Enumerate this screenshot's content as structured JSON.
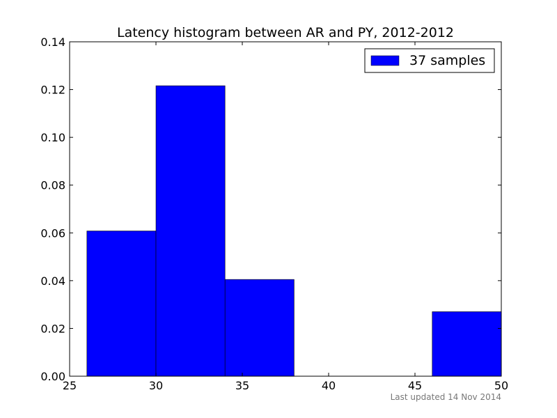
{
  "chart_data": {
    "type": "bar",
    "title": "Latency histogram between AR and PY, 2012-2012",
    "xlabel": "",
    "ylabel": "",
    "xlim": [
      25,
      50
    ],
    "ylim": [
      0,
      0.14
    ],
    "x_ticks": [
      25,
      30,
      35,
      40,
      45,
      50
    ],
    "y_ticks": [
      0.0,
      0.02,
      0.04,
      0.06,
      0.08,
      0.1,
      0.12,
      0.14
    ],
    "bins": [
      {
        "start": 26,
        "end": 30,
        "value": 0.0608
      },
      {
        "start": 30,
        "end": 34,
        "value": 0.1216
      },
      {
        "start": 34,
        "end": 38,
        "value": 0.0405
      },
      {
        "start": 38,
        "end": 42,
        "value": 0.0
      },
      {
        "start": 42,
        "end": 46,
        "value": 0.0
      },
      {
        "start": 46,
        "end": 50,
        "value": 0.027
      }
    ],
    "series": [
      {
        "name": "37 samples",
        "color": "#0000ff"
      }
    ],
    "legend": "top-right",
    "grid": false
  },
  "footer": "Last updated 14 Nov 2014"
}
